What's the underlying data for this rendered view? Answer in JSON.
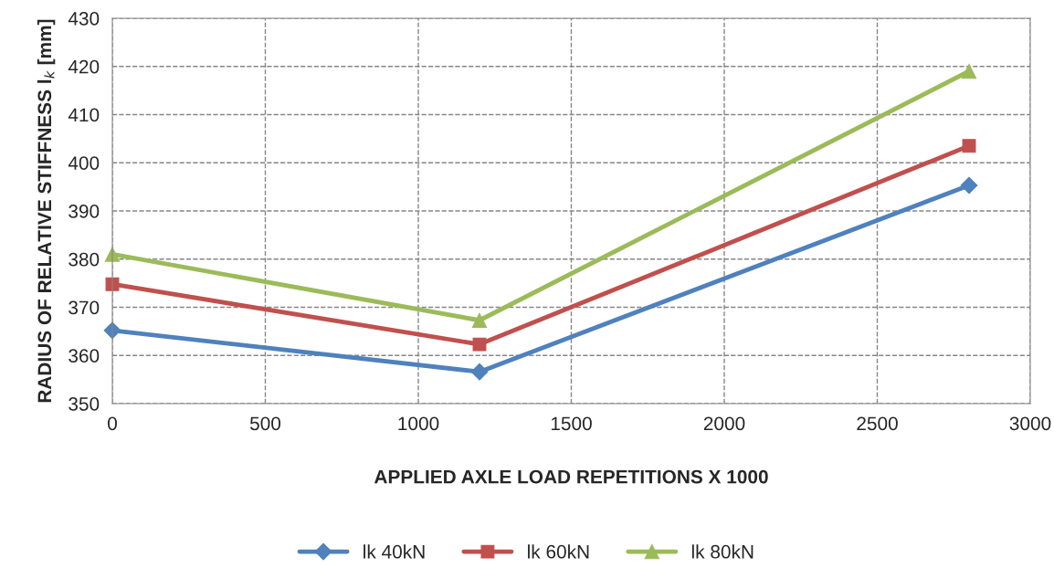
{
  "chart_data": {
    "type": "line",
    "x": [
      0,
      1200,
      2800
    ],
    "xlabel": "APPLIED AXLE LOAD REPETITIONS X 1000",
    "ylabel": "RADIUS OF RELATIVE STIFFNESS l$_{k}$ [mm]",
    "xlim": [
      0,
      3000
    ],
    "xticks": [
      0,
      500,
      1000,
      1500,
      2000,
      2500,
      3000
    ],
    "ylim": [
      350,
      430
    ],
    "yticks": [
      350,
      360,
      370,
      380,
      390,
      400,
      410,
      420,
      430
    ],
    "grid": true,
    "legend": "bottom",
    "line_style": "solid",
    "series": [
      {
        "name": "lk 40kN",
        "color": "#4f81bd",
        "marker": "diamond",
        "values": [
          365.2,
          356.6,
          395.3
        ]
      },
      {
        "name": "lk 60kN",
        "color": "#c0504d",
        "marker": "square",
        "values": [
          374.8,
          362.3,
          403.5
        ]
      },
      {
        "name": "lk 80kN",
        "color": "#9bbb59",
        "marker": "triangle",
        "values": [
          381.0,
          367.3,
          419.0
        ]
      }
    ]
  }
}
